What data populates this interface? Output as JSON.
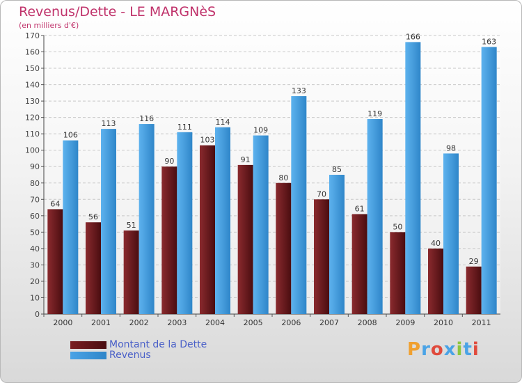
{
  "title": "Revenus/Dette - LE MARGNèS",
  "subtitle": "(en milliers d'€)",
  "logo_text": "Proxiti",
  "colors": {
    "dette": "#7a1e22",
    "revenus": "#4aa3e6",
    "title": "#c0336b",
    "legend_text": "#4a60c8"
  },
  "chart_data": {
    "type": "bar",
    "title": "Revenus/Dette - LE MARGNèS",
    "subtitle": "(en milliers d'€)",
    "categories": [
      "2000",
      "2001",
      "2002",
      "2003",
      "2004",
      "2005",
      "2006",
      "2007",
      "2008",
      "2009",
      "2010",
      "2011"
    ],
    "series": [
      {
        "name": "Montant de la Dette",
        "values": [
          64,
          56,
          51,
          90,
          103,
          91,
          80,
          70,
          61,
          50,
          40,
          29
        ]
      },
      {
        "name": "Revenus",
        "values": [
          106,
          113,
          116,
          111,
          114,
          109,
          133,
          85,
          119,
          166,
          98,
          163
        ]
      }
    ],
    "ylim": [
      0,
      170
    ],
    "ytick_step": 10,
    "grid": true,
    "legend_position": "bottom-left"
  }
}
